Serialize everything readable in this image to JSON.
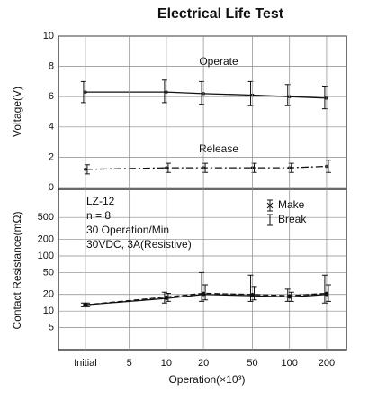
{
  "chart_data": [
    {
      "type": "line",
      "title": "Electrical Life Test",
      "ylabel": "Voltage(V)",
      "xlim": [
        1.33,
        290
      ],
      "ylim": [
        0,
        10
      ],
      "yticks": [
        0,
        2,
        4,
        6,
        8,
        10
      ],
      "grid": true,
      "x": [
        2.2,
        10,
        20,
        50,
        100,
        200
      ],
      "annotations": [
        "Operate",
        "Release"
      ],
      "series": [
        {
          "name": "Operate",
          "color": "#111",
          "dash": "solid",
          "values": [
            6.3,
            6.3,
            6.2,
            6.1,
            6.0,
            5.9
          ],
          "min": [
            5.6,
            5.6,
            5.5,
            5.4,
            5.4,
            5.2
          ],
          "max": [
            7.0,
            7.1,
            7.0,
            7.0,
            6.8,
            6.7
          ]
        },
        {
          "name": "Release",
          "color": "#111",
          "dash": "dashdot",
          "values": [
            1.2,
            1.3,
            1.3,
            1.3,
            1.3,
            1.4
          ],
          "min": [
            0.9,
            1.0,
            1.0,
            1.0,
            1.0,
            1.0
          ],
          "max": [
            1.5,
            1.6,
            1.6,
            1.6,
            1.6,
            1.8
          ]
        }
      ]
    },
    {
      "type": "line",
      "ylabel": "Contact Resistance(mΩ)",
      "xlabel": "Operation(×10³)",
      "log": true,
      "xlim": [
        1.33,
        290
      ],
      "ylim": [
        2,
        1500
      ],
      "yticks": [
        5,
        10,
        20,
        50,
        100,
        200,
        500
      ],
      "grid": true,
      "xticks": [
        {
          "value": 2.2,
          "label": "Initial"
        },
        5,
        10,
        20,
        50,
        100,
        200
      ],
      "x": [
        2.2,
        10,
        20,
        50,
        100,
        200
      ],
      "annotations": [
        "LZ-12",
        "n = 8",
        "30 Operation/Min",
        "30VDC, 3A(Resistive)"
      ],
      "legend": "upper right",
      "series": [
        {
          "name": "Make",
          "color": "#111",
          "dash": "solid",
          "values": [
            13,
            17,
            20,
            19,
            18,
            20
          ],
          "min": [
            12,
            14,
            15,
            15,
            15,
            14
          ],
          "max": [
            14,
            22,
            50,
            45,
            25,
            45
          ]
        },
        {
          "name": "Break",
          "color": "#111",
          "dash": "dash",
          "values": [
            13,
            18,
            21,
            20,
            19,
            21
          ],
          "min": [
            12,
            15,
            16,
            16,
            15,
            15
          ],
          "max": [
            14,
            21,
            30,
            28,
            22,
            30
          ]
        }
      ]
    }
  ]
}
